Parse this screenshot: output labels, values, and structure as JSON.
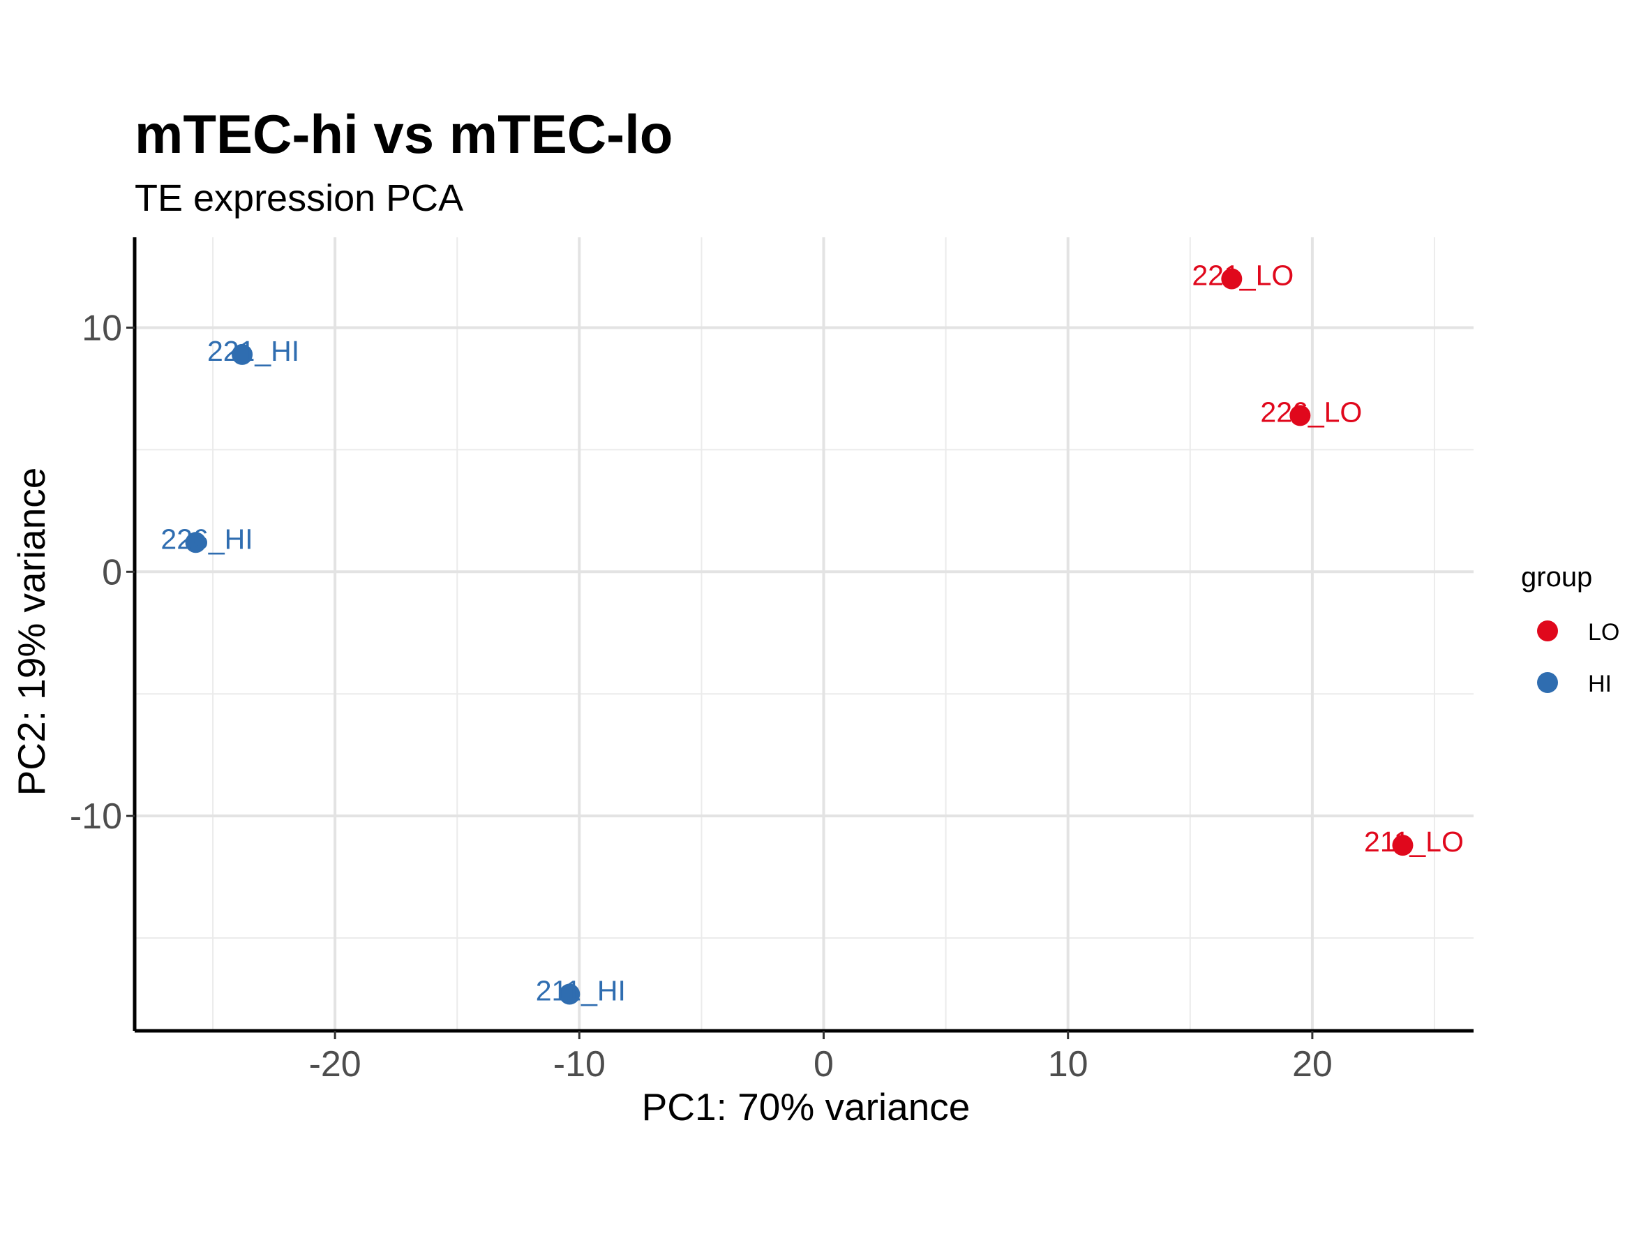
{
  "chart_data": {
    "type": "scatter",
    "title": "mTEC-hi vs mTEC-lo",
    "subtitle": "TE expression PCA",
    "xlabel": "PC1: 70% variance",
    "ylabel": "PC2: 19% variance",
    "xlim": [
      -28.2,
      26.6
    ],
    "ylim": [
      -18.8,
      13.7
    ],
    "x_ticks": [
      -20,
      -10,
      0,
      10,
      20
    ],
    "x_tick_labels": [
      "-20",
      "-10",
      "0",
      "10",
      "20"
    ],
    "y_ticks": [
      -10,
      0,
      10
    ],
    "y_tick_labels": [
      "-10",
      "0",
      "10"
    ],
    "grid": true,
    "legend": {
      "title": "group",
      "position": "right",
      "entries": [
        {
          "name": "LO",
          "color": "#e0081c"
        },
        {
          "name": "HI",
          "color": "#2f6db0"
        }
      ]
    },
    "points": [
      {
        "label": "221_LO",
        "group": "LO",
        "x": 16.7,
        "y": 12.0
      },
      {
        "label": "226_LO",
        "group": "LO",
        "x": 19.5,
        "y": 6.4
      },
      {
        "label": "211_LO",
        "group": "LO",
        "x": 23.7,
        "y": -11.2
      },
      {
        "label": "221_HI",
        "group": "HI",
        "x": -23.8,
        "y": 8.9
      },
      {
        "label": "226_HI",
        "group": "HI",
        "x": -25.7,
        "y": 1.2
      },
      {
        "label": "211_HI",
        "group": "HI",
        "x": -10.4,
        "y": -17.3
      }
    ]
  }
}
